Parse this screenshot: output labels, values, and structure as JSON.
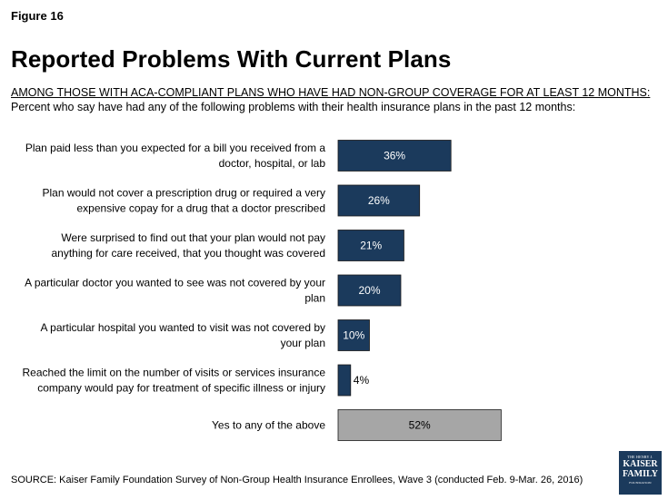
{
  "figure_label": "Figure 16",
  "title": "Reported Problems With Current Plans",
  "subtitle_caps": "AMONG THOSE WITH ACA-COMPLIANT PLANS WHO HAVE HAD NON-GROUP COVERAGE FOR AT LEAST 12 MONTHS:",
  "subtitle": "Percent who say have had any of the following problems with their health insurance plans in the past 12 months:",
  "source": "SOURCE: Kaiser Family Foundation Survey of Non-Group Health Insurance Enrollees, Wave 3 (conducted Feb. 9-Mar. 26, 2016)",
  "logo": {
    "top": "THE HENRY J.",
    "line1": "KAISER",
    "line2": "FAMILY",
    "bottom": "FOUNDATION"
  },
  "colors": {
    "bar": "#1b3a5c",
    "total_bar": "#a6a6a6"
  },
  "chart_data": {
    "type": "bar",
    "orientation": "horizontal",
    "categories": [
      [
        "Plan paid less than you expected for a bill you received from a",
        "doctor, hospital, or lab"
      ],
      [
        "Plan would not cover a prescription drug or required a very",
        "expensive copay for a drug that a doctor prescribed"
      ],
      [
        "Were surprised to find out that your plan would not pay",
        "anything for care received, that you thought was covered"
      ],
      [
        "A particular doctor you wanted to see was not covered by your",
        "plan"
      ],
      [
        "A particular hospital you wanted to visit was not covered by",
        "your plan"
      ],
      [
        "Reached the limit on the number of visits or services insurance",
        "company would pay for treatment of specific illness or injury"
      ],
      [
        "Yes to any of the above"
      ]
    ],
    "values": [
      36,
      26,
      21,
      20,
      10,
      4,
      52
    ],
    "data_labels": [
      "36%",
      "26%",
      "21%",
      "20%",
      "10%",
      "4%",
      "52%"
    ],
    "highlight_index": 6,
    "xlim": [
      0,
      100
    ],
    "grid": false,
    "legend": "none"
  }
}
